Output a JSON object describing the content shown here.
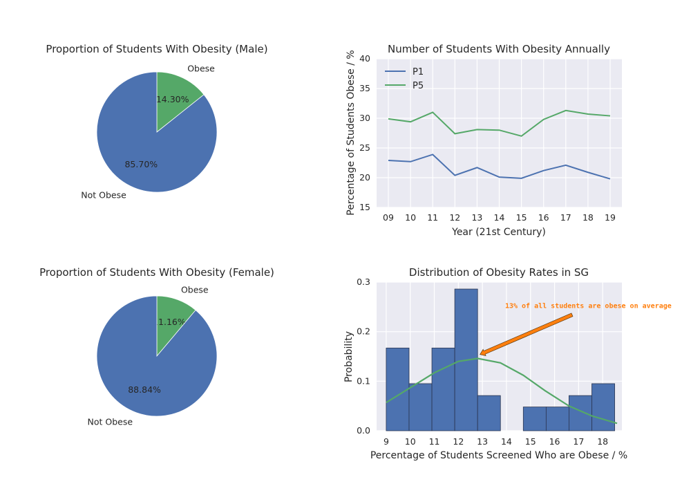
{
  "chart_data": [
    {
      "type": "pie",
      "title": "Proportion of Students With Obesity (Male)",
      "slices": [
        {
          "label": "Obese",
          "value": 14.3,
          "pct_text": "14.30%",
          "color": "#55a868"
        },
        {
          "label": "Not Obese",
          "value": 85.7,
          "pct_text": "85.70%",
          "color": "#4c72b0"
        }
      ]
    },
    {
      "type": "line",
      "title": "Number of Students With Obesity Annually",
      "xlabel": "Year (21st Century)",
      "ylabel": "Percentage of Students Obese / %",
      "x_ticks": [
        "09",
        "10",
        "11",
        "12",
        "13",
        "14",
        "15",
        "16",
        "17",
        "18",
        "19"
      ],
      "y_ticks": [
        "15",
        "20",
        "25",
        "30",
        "35",
        "40"
      ],
      "ylim": [
        15,
        40
      ],
      "grid": true,
      "legend_position": "top-left",
      "series": [
        {
          "name": "P1",
          "color": "#4c72b0",
          "values": [
            22.9,
            22.7,
            23.9,
            20.4,
            21.7,
            20.1,
            19.9,
            21.2,
            22.1,
            20.9,
            19.8
          ]
        },
        {
          "name": "P5",
          "color": "#55a868",
          "values": [
            29.9,
            29.4,
            31.0,
            27.4,
            28.1,
            28.0,
            27.0,
            29.8,
            31.3,
            30.7,
            30.4
          ]
        }
      ]
    },
    {
      "type": "pie",
      "title": "Proportion of Students With Obesity (Female)",
      "slices": [
        {
          "label": "Obese",
          "value": 11.16,
          "pct_text": "11.16%",
          "color": "#55a868"
        },
        {
          "label": "Not Obese",
          "value": 88.84,
          "pct_text": "88.84%",
          "color": "#4c72b0"
        }
      ]
    },
    {
      "type": "bar",
      "title": "Distribution of Obesity Rates in SG",
      "xlabel": "Percentage of Students Screened Who are Obese / %",
      "ylabel": "Probability",
      "x_ticks": [
        "9",
        "10",
        "11",
        "12",
        "13",
        "14",
        "15",
        "16",
        "17",
        "18"
      ],
      "y_ticks": [
        "0.0",
        "0.1",
        "0.2",
        "0.3"
      ],
      "ylim": [
        0,
        0.3
      ],
      "xlim": [
        8.6,
        18.8
      ],
      "grid": true,
      "bins": [
        {
          "x0": 9.0,
          "x1": 9.95,
          "value": 0.167
        },
        {
          "x0": 9.95,
          "x1": 10.9,
          "value": 0.095
        },
        {
          "x0": 10.9,
          "x1": 11.85,
          "value": 0.167
        },
        {
          "x0": 11.85,
          "x1": 12.8,
          "value": 0.286
        },
        {
          "x0": 12.8,
          "x1": 13.75,
          "value": 0.071
        },
        {
          "x0": 13.75,
          "x1": 14.7,
          "value": 0.0
        },
        {
          "x0": 14.7,
          "x1": 15.65,
          "value": 0.048
        },
        {
          "x0": 15.65,
          "x1": 16.6,
          "value": 0.048
        },
        {
          "x0": 16.6,
          "x1": 17.55,
          "value": 0.071
        },
        {
          "x0": 17.55,
          "x1": 18.5,
          "value": 0.095
        }
      ],
      "bar_color": "#4c72b0",
      "curve": {
        "color": "#55a868",
        "x": [
          9.0,
          10.0,
          11.0,
          12.0,
          12.8,
          13.75,
          14.7,
          15.6,
          16.6,
          17.55,
          18.6
        ],
        "y": [
          0.057,
          0.087,
          0.117,
          0.14,
          0.146,
          0.137,
          0.112,
          0.081,
          0.05,
          0.03,
          0.015
        ]
      },
      "annotation": {
        "text": "13% of all students are obese on average",
        "color": "#ff7f0e",
        "point_x": 12.9,
        "point_y": 0.154,
        "text_x": 14.0,
        "text_y": 0.248
      }
    }
  ]
}
